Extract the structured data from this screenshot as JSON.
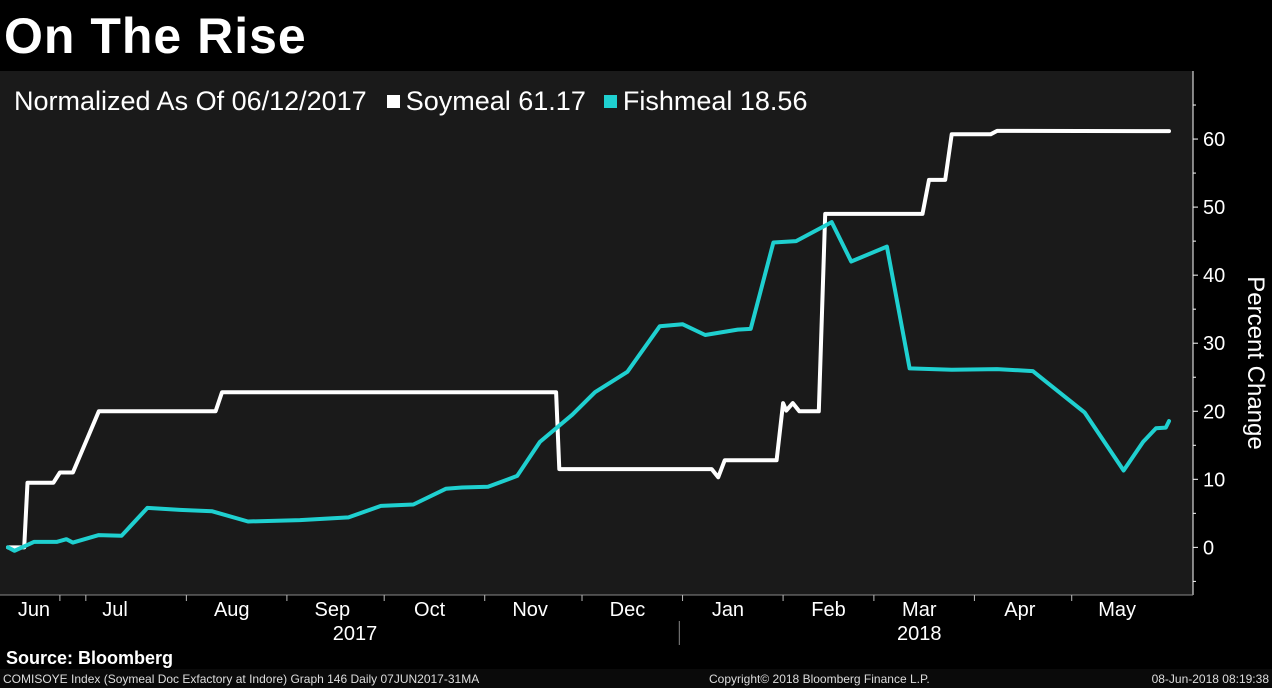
{
  "title": "On The Rise",
  "legend_label": "Normalized As Of 06/12/2017",
  "source": "Source: Bloomberg",
  "footer": {
    "left": "COMISOYE Index (Soymeal Doc Exfactory at Indore) Graph 146  Daily 07JUN2017-31MA",
    "center": "Copyright© 2018 Bloomberg Finance L.P.",
    "right": "08-Jun-2018 08:19:38"
  },
  "colors": {
    "soymeal": "#ffffff",
    "fishmeal": "#1fd0d0",
    "plot_bg": "#1a1a1a",
    "background": "#000000"
  },
  "chart_data": {
    "type": "line",
    "ylabel": "Percent Change",
    "ylim": [
      -7,
      70
    ],
    "yticks": [
      0,
      10,
      20,
      30,
      40,
      50,
      60
    ],
    "grid": false,
    "legend_position": "top-left",
    "x_start": "2017-06-07",
    "x_end": "2018-05-31",
    "month_labels": [
      {
        "label": "Jun",
        "date": "2017-06-15"
      },
      {
        "label": "Jul",
        "date": "2017-07-10"
      },
      {
        "label": "Aug",
        "date": "2017-08-15"
      },
      {
        "label": "Sep",
        "date": "2017-09-15"
      },
      {
        "label": "Oct",
        "date": "2017-10-15"
      },
      {
        "label": "Nov",
        "date": "2017-11-15"
      },
      {
        "label": "Dec",
        "date": "2017-12-15"
      },
      {
        "label": "Jan",
        "date": "2018-01-15"
      },
      {
        "label": "Feb",
        "date": "2018-02-15"
      },
      {
        "label": "Mar",
        "date": "2018-03-15"
      },
      {
        "label": "Apr",
        "date": "2018-04-15"
      },
      {
        "label": "May",
        "date": "2018-05-15"
      }
    ],
    "month_ticks": [
      "2017-06-23",
      "2017-07-01",
      "2017-08-01",
      "2017-09-01",
      "2017-10-01",
      "2017-11-01",
      "2017-12-01",
      "2018-01-01",
      "2018-02-01",
      "2018-03-01",
      "2018-04-01",
      "2018-05-01"
    ],
    "year_labels": [
      {
        "label": "2017",
        "date": "2017-09-22"
      },
      {
        "label": "2018",
        "date": "2018-03-15"
      }
    ],
    "year_divider": "2017-12-31",
    "series": [
      {
        "name": "Soymeal",
        "last_value": "61.17",
        "color": "#ffffff",
        "points": [
          [
            "2017-06-07",
            0
          ],
          [
            "2017-06-12",
            0
          ],
          [
            "2017-06-13",
            9.5
          ],
          [
            "2017-06-21",
            9.5
          ],
          [
            "2017-06-23",
            11
          ],
          [
            "2017-06-27",
            11
          ],
          [
            "2017-07-05",
            20
          ],
          [
            "2017-07-25",
            20
          ],
          [
            "2017-08-05",
            20
          ],
          [
            "2017-08-10",
            20
          ],
          [
            "2017-08-12",
            22.8
          ],
          [
            "2017-09-25",
            22.8
          ],
          [
            "2017-10-20",
            22.8
          ],
          [
            "2017-11-20",
            22.8
          ],
          [
            "2017-11-23",
            22.8
          ],
          [
            "2017-11-24",
            11.5
          ],
          [
            "2017-12-18",
            11.5
          ],
          [
            "2018-01-10",
            11.5
          ],
          [
            "2018-01-12",
            10.3
          ],
          [
            "2018-01-14",
            12.8
          ],
          [
            "2018-01-30",
            12.8
          ],
          [
            "2018-02-01",
            21.2
          ],
          [
            "2018-02-02",
            20.1
          ],
          [
            "2018-02-04",
            21.2
          ],
          [
            "2018-02-06",
            20
          ],
          [
            "2018-02-12",
            20
          ],
          [
            "2018-02-14",
            49
          ],
          [
            "2018-03-05",
            49
          ],
          [
            "2018-03-16",
            49
          ],
          [
            "2018-03-18",
            54
          ],
          [
            "2018-03-23",
            54
          ],
          [
            "2018-03-25",
            60.7
          ],
          [
            "2018-04-06",
            60.7
          ],
          [
            "2018-04-08",
            61.2
          ],
          [
            "2018-05-31",
            61.17
          ]
        ]
      },
      {
        "name": "Fishmeal",
        "last_value": "18.56",
        "color": "#1fd0d0",
        "points": [
          [
            "2017-06-07",
            0
          ],
          [
            "2017-06-09",
            -0.5
          ],
          [
            "2017-06-15",
            0.8
          ],
          [
            "2017-06-22",
            0.8
          ],
          [
            "2017-06-25",
            1.2
          ],
          [
            "2017-06-27",
            0.7
          ],
          [
            "2017-07-05",
            1.8
          ],
          [
            "2017-07-12",
            1.7
          ],
          [
            "2017-07-20",
            5.8
          ],
          [
            "2017-07-30",
            5.5
          ],
          [
            "2017-08-09",
            5.3
          ],
          [
            "2017-08-20",
            3.8
          ],
          [
            "2017-09-05",
            4
          ],
          [
            "2017-09-20",
            4.4
          ],
          [
            "2017-09-30",
            6.1
          ],
          [
            "2017-10-10",
            6.3
          ],
          [
            "2017-10-20",
            8.6
          ],
          [
            "2017-10-25",
            8.8
          ],
          [
            "2017-11-02",
            8.9
          ],
          [
            "2017-11-11",
            10.5
          ],
          [
            "2017-11-18",
            15.5
          ],
          [
            "2017-11-28",
            19.5
          ],
          [
            "2017-12-05",
            22.8
          ],
          [
            "2017-12-15",
            25.8
          ],
          [
            "2017-12-25",
            32.5
          ],
          [
            "2018-01-01",
            32.8
          ],
          [
            "2018-01-08",
            31.2
          ],
          [
            "2018-01-18",
            32
          ],
          [
            "2018-01-22",
            32.1
          ],
          [
            "2018-01-29",
            44.8
          ],
          [
            "2018-02-05",
            45
          ],
          [
            "2018-02-16",
            47.8
          ],
          [
            "2018-02-22",
            42
          ],
          [
            "2018-03-05",
            44.2
          ],
          [
            "2018-03-12",
            26.3
          ],
          [
            "2018-03-25",
            26.1
          ],
          [
            "2018-04-08",
            26.2
          ],
          [
            "2018-04-19",
            25.9
          ],
          [
            "2018-05-05",
            19.8
          ],
          [
            "2018-05-17",
            11.3
          ],
          [
            "2018-05-23",
            15.5
          ],
          [
            "2018-05-27",
            17.5
          ],
          [
            "2018-05-30",
            17.6
          ],
          [
            "2018-05-31",
            18.56
          ]
        ]
      }
    ]
  }
}
